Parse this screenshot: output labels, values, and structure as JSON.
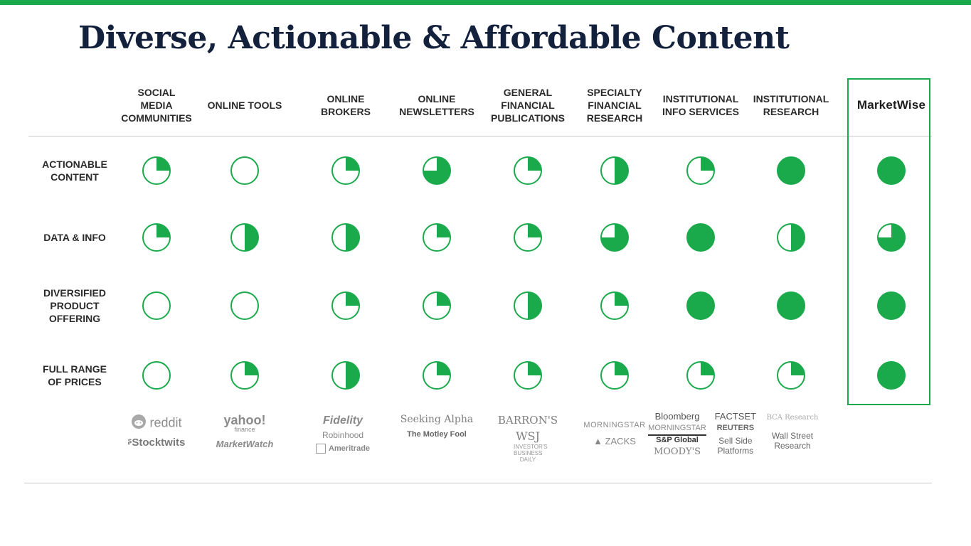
{
  "title": "Diverse, Actionable & Affordable Content",
  "columns": [
    {
      "label": "SOCIAL\nMEDIA\nCOMMUNITIES"
    },
    {
      "label": "ONLINE TOOLS"
    },
    {
      "label": "ONLINE BROKERS"
    },
    {
      "label": "ONLINE\nNEWSLETTERS"
    },
    {
      "label": "GENERAL\nFINANCIAL\nPUBLICATIONS"
    },
    {
      "label": "SPECIALTY\nFINANCIAL\nRESEARCH"
    },
    {
      "label": "INSTITUTIONAL\nINFO SERVICES"
    },
    {
      "label": "INSTITUTIONAL\nRESEARCH"
    },
    {
      "label": "MarketWise"
    }
  ],
  "rows": [
    {
      "label": "ACTIONABLE\nCONTENT",
      "ratings": [
        0.25,
        0,
        0.25,
        0.75,
        0.25,
        0.5,
        0.25,
        1,
        1
      ]
    },
    {
      "label": "DATA & INFO",
      "ratings": [
        0.25,
        0.5,
        0.5,
        0.25,
        0.25,
        0.75,
        1,
        0.5,
        0.75
      ]
    },
    {
      "label": "DIVERSIFIED\nPRODUCT\nOFFERING",
      "ratings": [
        0,
        0,
        0.25,
        0.25,
        0.5,
        0.25,
        1,
        1,
        1
      ]
    },
    {
      "label": "FULL RANGE\nOF PRICES",
      "ratings": [
        0,
        0.25,
        0.5,
        0.25,
        0.25,
        0.25,
        0.25,
        0.25,
        1
      ]
    }
  ],
  "colors": {
    "accent": "#1aaa4b",
    "title": "#14213d"
  },
  "logos": {
    "social": [
      "reddit",
      "Stocktwits"
    ],
    "tools": [
      "yahoo!",
      "finance",
      "MarketWatch"
    ],
    "brokers": [
      "Fidelity",
      "Robinhood",
      "Ameritrade"
    ],
    "newsletters": [
      "Seeking Alpha",
      "The Motley Fool"
    ],
    "general": [
      "BARRON'S",
      "WSJ",
      "INVESTOR'S BUSINESS DAILY"
    ],
    "specialty": [
      "MORNINGSTAR",
      "ZACKS"
    ],
    "institutional_info": [
      "Bloomberg",
      "FACTSET",
      "MORNINGSTAR",
      "REUTERS",
      "S&P Global",
      "Sell Side Platforms",
      "MOODY'S"
    ],
    "institutional_research": [
      "BCA Research",
      "Wall Street Research"
    ]
  }
}
